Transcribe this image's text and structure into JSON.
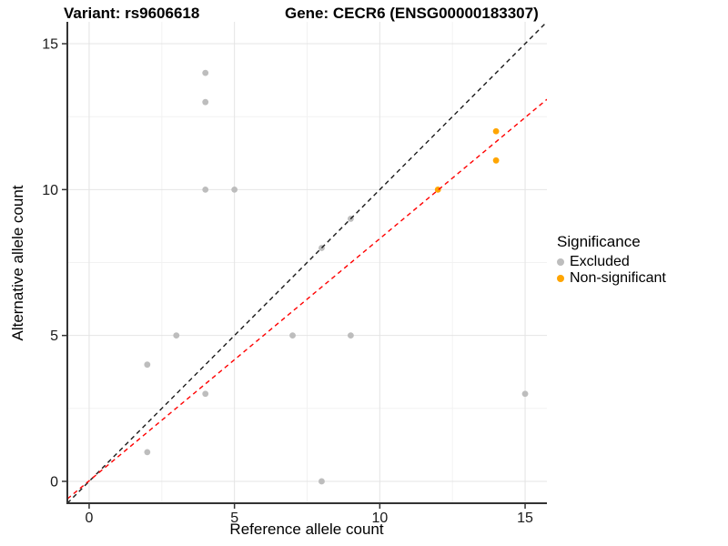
{
  "titles": {
    "variant": "Variant: rs9606618",
    "gene": "Gene: CECR6 (ENSG00000183307)"
  },
  "chart_data": {
    "type": "scatter",
    "xlabel": "Reference allele count",
    "ylabel": "Alternative allele count",
    "xlim": [
      -0.75,
      15.75
    ],
    "ylim": [
      -0.75,
      15.75
    ],
    "xticks": [
      0,
      5,
      10,
      15
    ],
    "yticks": [
      0,
      5,
      10,
      15
    ],
    "minor_ticks": [
      2.5,
      7.5,
      12.5
    ],
    "grid": true,
    "series": [
      {
        "name": "Excluded",
        "color": "#bdbdbd",
        "points": [
          [
            2,
            1
          ],
          [
            2,
            4
          ],
          [
            3,
            5
          ],
          [
            4,
            3
          ],
          [
            4,
            10
          ],
          [
            4,
            13
          ],
          [
            4,
            14
          ],
          [
            5,
            10
          ],
          [
            7,
            5
          ],
          [
            8,
            0
          ],
          [
            8,
            8
          ],
          [
            9,
            5
          ],
          [
            9,
            9
          ],
          [
            15,
            3
          ]
        ]
      },
      {
        "name": "Non-significant",
        "color": "#ffa500",
        "points": [
          [
            12,
            10
          ],
          [
            14,
            11
          ],
          [
            14,
            12
          ]
        ]
      }
    ],
    "lines": [
      {
        "name": "identity-line",
        "color": "#1a1a1a",
        "slope": 1,
        "intercept": 0,
        "dash": true
      },
      {
        "name": "fit-line",
        "color": "#ff0000",
        "slope": 0.83,
        "intercept": 0.02,
        "dash": true
      }
    ],
    "legend": {
      "title": "Significance",
      "position": "right",
      "items": [
        "Excluded",
        "Non-significant"
      ]
    },
    "colors": {
      "grid_major": "#e4e4e4",
      "grid_minor": "#f2f2f2",
      "axis_line": "#333333",
      "tick_text": "#1a1a1a"
    }
  }
}
